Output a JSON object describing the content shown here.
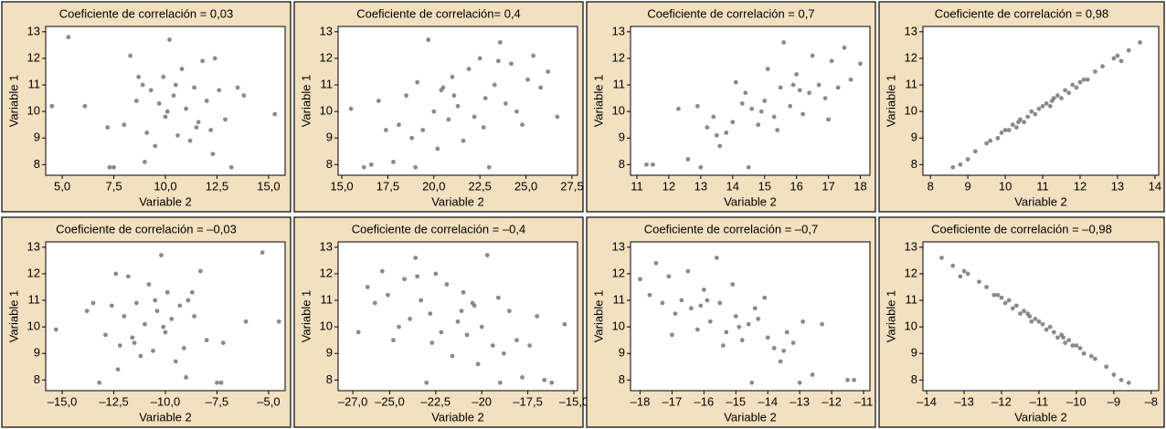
{
  "chart_data": [
    {
      "type": "scatter",
      "title": "Coeficiente de correlación = 0,03",
      "x_label": "Variable 2",
      "y_label": "Variable 1",
      "color": "#767676",
      "background": "#f3e0c0",
      "x": [
        5.3,
        6.1,
        4.5,
        7.2,
        7.5,
        8.0,
        8.3,
        8.6,
        8.9,
        9.1,
        9.3,
        9.5,
        9.7,
        9.9,
        10.0,
        10.2,
        10.4,
        10.6,
        10.8,
        11.0,
        11.2,
        11.4,
        11.6,
        11.8,
        12.0,
        12.2,
        12.4,
        12.6,
        12.9,
        13.2,
        13.5,
        13.8,
        15.3,
        9.0,
        10.5,
        11.5,
        8.7,
        12.3,
        7.3,
        10.1
      ],
      "values": [
        12.8,
        10.2,
        10.2,
        9.4,
        7.9,
        9.5,
        12.1,
        10.4,
        11.0,
        9.2,
        10.8,
        8.7,
        10.3,
        11.3,
        9.8,
        12.7,
        10.6,
        9.1,
        11.6,
        10.1,
        8.9,
        10.9,
        9.6,
        11.9,
        10.4,
        9.3,
        12.0,
        10.8,
        9.7,
        7.9,
        10.9,
        10.6,
        9.9,
        8.1,
        11.0,
        9.4,
        11.3,
        8.4,
        7.9,
        10.0
      ],
      "xlim": [
        4.2,
        15.8
      ],
      "ylim": [
        7.6,
        13.2
      ],
      "xticks": [
        {
          "value": 5,
          "label": "5,0"
        },
        {
          "value": 7.5,
          "label": "7,5"
        },
        {
          "value": 10,
          "label": "10,0"
        },
        {
          "value": 12.5,
          "label": "12,5"
        },
        {
          "value": 15,
          "label": "15,0"
        }
      ],
      "yticks": [
        8,
        9,
        10,
        11,
        12,
        13
      ]
    },
    {
      "type": "scatter",
      "title": "Coeficiente de correlación= 0,4",
      "x_label": "Variable 2",
      "y_label": "Variable 1",
      "color": "#767676",
      "background": "#f3e0c0",
      "x": [
        15.5,
        16.2,
        16.6,
        17.0,
        17.4,
        17.8,
        18.1,
        18.5,
        18.8,
        19.1,
        19.4,
        19.7,
        20.0,
        20.2,
        20.5,
        20.8,
        21.0,
        21.3,
        21.6,
        21.9,
        22.2,
        22.5,
        22.8,
        23.0,
        23.3,
        23.6,
        23.9,
        24.2,
        24.5,
        24.8,
        25.1,
        25.4,
        25.8,
        26.2,
        26.7,
        19.0,
        21.1,
        22.7,
        20.4,
        23.5
      ],
      "values": [
        10.1,
        7.9,
        8.0,
        10.4,
        9.3,
        8.1,
        9.5,
        10.6,
        9.0,
        11.1,
        9.3,
        12.7,
        10.0,
        8.6,
        10.9,
        9.7,
        11.3,
        10.2,
        8.9,
        11.6,
        9.8,
        12.0,
        10.5,
        7.9,
        11.0,
        12.6,
        10.3,
        11.8,
        10.0,
        9.5,
        11.2,
        12.1,
        10.9,
        11.5,
        9.8,
        7.9,
        10.6,
        9.4,
        10.8,
        11.9
      ],
      "xlim": [
        14.8,
        27.8
      ],
      "ylim": [
        7.6,
        13.2
      ],
      "xticks": [
        {
          "value": 15,
          "label": "15,0"
        },
        {
          "value": 17.5,
          "label": "17,5"
        },
        {
          "value": 20,
          "label": "20,0"
        },
        {
          "value": 22.5,
          "label": "22,5"
        },
        {
          "value": 25,
          "label": "25,0"
        },
        {
          "value": 27.5,
          "label": "27,5"
        }
      ],
      "yticks": [
        8,
        9,
        10,
        11,
        12,
        13
      ]
    },
    {
      "type": "scatter",
      "title": "Coeficiente de correlación = 0,7",
      "x_label": "Variable 2",
      "y_label": "Variable 1",
      "color": "#767676",
      "background": "#f3e0c0",
      "x": [
        11.3,
        11.5,
        12.3,
        12.6,
        12.9,
        13.0,
        13.2,
        13.4,
        13.6,
        13.8,
        14.0,
        14.1,
        14.3,
        14.5,
        14.6,
        14.8,
        15.0,
        15.1,
        15.3,
        15.5,
        15.6,
        15.8,
        16.0,
        16.2,
        16.4,
        16.5,
        16.7,
        16.9,
        17.1,
        17.3,
        17.5,
        17.7,
        18.0,
        14.4,
        15.4,
        16.1,
        13.5,
        17.0,
        15.9,
        14.9
      ],
      "values": [
        8.0,
        8.0,
        10.1,
        8.2,
        10.2,
        7.9,
        9.4,
        9.8,
        8.7,
        9.2,
        9.6,
        11.1,
        10.3,
        7.9,
        10.1,
        9.5,
        10.4,
        11.6,
        9.8,
        10.9,
        12.6,
        10.2,
        11.4,
        9.9,
        10.7,
        12.1,
        11.0,
        10.5,
        11.9,
        10.9,
        12.4,
        11.2,
        11.8,
        10.7,
        9.3,
        10.8,
        9.1,
        9.7,
        11.0,
        10.0
      ],
      "xlim": [
        10.8,
        18.3
      ],
      "ylim": [
        7.6,
        13.2
      ],
      "xticks": [
        11,
        12,
        13,
        14,
        15,
        16,
        17,
        18
      ],
      "yticks": [
        8,
        9,
        10,
        11,
        12,
        13
      ]
    },
    {
      "type": "scatter",
      "title": "Coeficiente de correlación = 0,98",
      "x_label": "Variable 2",
      "y_label": "Variable 1",
      "color": "#767676",
      "background": "#f3e0c0",
      "x": [
        8.6,
        8.8,
        9.0,
        9.2,
        9.5,
        9.6,
        9.8,
        9.9,
        10.0,
        10.1,
        10.2,
        10.3,
        10.4,
        10.5,
        10.6,
        10.7,
        10.8,
        10.9,
        11.0,
        11.1,
        11.2,
        11.3,
        11.4,
        11.5,
        11.6,
        11.7,
        11.8,
        11.9,
        12.0,
        12.1,
        12.2,
        12.4,
        12.6,
        12.9,
        13.0,
        13.1,
        13.3,
        13.6,
        10.35,
        11.25
      ],
      "values": [
        7.9,
        8.0,
        8.2,
        8.5,
        8.8,
        8.9,
        9.0,
        9.2,
        9.3,
        9.3,
        9.5,
        9.4,
        9.7,
        9.6,
        9.8,
        10.0,
        9.9,
        10.1,
        10.2,
        10.3,
        10.2,
        10.5,
        10.6,
        10.5,
        10.8,
        10.7,
        11.0,
        10.9,
        11.1,
        11.2,
        11.2,
        11.5,
        11.7,
        12.0,
        12.1,
        11.9,
        12.3,
        12.6,
        9.6,
        10.4
      ],
      "xlim": [
        7.8,
        14.1
      ],
      "ylim": [
        7.6,
        13.2
      ],
      "xticks": [
        8,
        9,
        10,
        11,
        12,
        13,
        14
      ],
      "yticks": [
        8,
        9,
        10,
        11,
        12,
        13
      ]
    },
    {
      "type": "scatter",
      "title": "Coeficiente de correlación = –0,03",
      "x_label": "Variable 2",
      "y_label": "Variable 1",
      "color": "#767676",
      "background": "#f3e0c0",
      "x": [
        -5.3,
        -6.1,
        -4.5,
        -7.2,
        -7.5,
        -8.0,
        -8.3,
        -8.6,
        -8.9,
        -9.1,
        -9.3,
        -9.5,
        -9.7,
        -9.9,
        -10.0,
        -10.2,
        -10.4,
        -10.6,
        -10.8,
        -11.0,
        -11.2,
        -11.4,
        -11.6,
        -11.8,
        -12.0,
        -12.2,
        -12.4,
        -12.6,
        -12.9,
        -13.2,
        -13.5,
        -13.8,
        -15.3,
        -9.0,
        -10.5,
        -11.5,
        -8.7,
        -12.3,
        -7.3,
        -10.1
      ],
      "values": [
        12.8,
        10.2,
        10.2,
        9.4,
        7.9,
        9.5,
        12.1,
        10.4,
        11.0,
        9.2,
        10.8,
        8.7,
        10.3,
        11.3,
        9.8,
        12.7,
        10.6,
        9.1,
        11.6,
        10.1,
        8.9,
        10.9,
        9.6,
        11.9,
        10.4,
        9.3,
        12.0,
        10.8,
        9.7,
        7.9,
        10.9,
        10.6,
        9.9,
        8.1,
        11.0,
        9.4,
        11.3,
        8.4,
        7.9,
        10.0
      ],
      "xlim": [
        -15.8,
        -4.2
      ],
      "ylim": [
        7.6,
        13.2
      ],
      "xticks": [
        {
          "value": -15,
          "label": "–15,0"
        },
        {
          "value": -12.5,
          "label": "–12,5"
        },
        {
          "value": -10,
          "label": "–10,0"
        },
        {
          "value": -7.5,
          "label": "–7,5"
        },
        {
          "value": -5,
          "label": "–5,0"
        }
      ],
      "yticks": [
        8,
        9,
        10,
        11,
        12,
        13
      ]
    },
    {
      "type": "scatter",
      "title": "Coeficiente de correlación = –0,4",
      "x_label": "Variable 2",
      "y_label": "Variable 1",
      "color": "#767676",
      "background": "#f3e0c0",
      "x": [
        -15.5,
        -16.2,
        -16.6,
        -17.0,
        -17.4,
        -17.8,
        -18.1,
        -18.5,
        -18.8,
        -19.1,
        -19.4,
        -19.7,
        -20.0,
        -20.2,
        -20.5,
        -20.8,
        -21.0,
        -21.3,
        -21.6,
        -21.9,
        -22.2,
        -22.5,
        -22.8,
        -23.0,
        -23.3,
        -23.6,
        -23.9,
        -24.2,
        -24.5,
        -24.8,
        -25.1,
        -25.4,
        -25.8,
        -26.2,
        -26.7,
        -19.0,
        -21.1,
        -22.7,
        -20.4,
        -23.5
      ],
      "values": [
        10.1,
        7.9,
        8.0,
        10.4,
        9.3,
        8.1,
        9.5,
        10.6,
        9.0,
        11.1,
        9.3,
        12.7,
        10.0,
        8.6,
        10.9,
        9.7,
        11.3,
        10.2,
        8.9,
        11.6,
        9.8,
        12.0,
        10.5,
        7.9,
        11.0,
        12.6,
        10.3,
        11.8,
        10.0,
        9.5,
        11.2,
        12.1,
        10.9,
        11.5,
        9.8,
        7.9,
        10.6,
        9.4,
        10.8,
        11.9
      ],
      "xlim": [
        -27.8,
        -14.8
      ],
      "ylim": [
        7.6,
        13.2
      ],
      "xticks": [
        {
          "value": -27,
          "label": "–27,0"
        },
        {
          "value": -25,
          "label": "–25,0"
        },
        {
          "value": -22.5,
          "label": "–22,5"
        },
        {
          "value": -20,
          "label": "–20"
        },
        {
          "value": -17.5,
          "label": "–17,5"
        },
        {
          "value": -15,
          "label": "–15,0"
        }
      ],
      "yticks": [
        8,
        9,
        10,
        11,
        12,
        13
      ]
    },
    {
      "type": "scatter",
      "title": "Coeficiente de correlación = –0,7",
      "x_label": "Variable 2",
      "y_label": "Variable 1",
      "color": "#767676",
      "background": "#f3e0c0",
      "x": [
        -11.3,
        -11.5,
        -12.3,
        -12.6,
        -12.9,
        -13.0,
        -13.2,
        -13.4,
        -13.6,
        -13.8,
        -14.0,
        -14.1,
        -14.3,
        -14.5,
        -14.6,
        -14.8,
        -15.0,
        -15.1,
        -15.3,
        -15.5,
        -15.6,
        -15.8,
        -16.0,
        -16.2,
        -16.4,
        -16.5,
        -16.7,
        -16.9,
        -17.1,
        -17.3,
        -17.5,
        -17.7,
        -18.0,
        -14.4,
        -15.4,
        -16.1,
        -13.5,
        -17.0,
        -15.9,
        -14.9
      ],
      "values": [
        8.0,
        8.0,
        10.1,
        8.2,
        10.2,
        7.9,
        9.4,
        9.8,
        8.7,
        9.2,
        9.6,
        11.1,
        10.3,
        7.9,
        10.1,
        9.5,
        10.4,
        11.6,
        9.8,
        10.9,
        12.6,
        10.2,
        11.4,
        9.9,
        10.7,
        12.1,
        11.0,
        10.5,
        11.9,
        10.9,
        12.4,
        11.2,
        11.8,
        10.7,
        9.3,
        10.8,
        9.1,
        9.7,
        11.0,
        10.0
      ],
      "xlim": [
        -18.3,
        -10.8
      ],
      "ylim": [
        7.6,
        13.2
      ],
      "xticks": [
        {
          "value": -18,
          "label": "–18"
        },
        {
          "value": -17,
          "label": "–17"
        },
        {
          "value": -16,
          "label": "–16"
        },
        {
          "value": -15,
          "label": "–15"
        },
        {
          "value": -14,
          "label": "–14"
        },
        {
          "value": -13,
          "label": "–13"
        },
        {
          "value": -12,
          "label": "–12"
        },
        {
          "value": -11,
          "label": "–11"
        }
      ],
      "yticks": [
        8,
        9,
        10,
        11,
        12,
        13
      ]
    },
    {
      "type": "scatter",
      "title": "Coeficiente de correlación = –0,98",
      "x_label": "Variable 2",
      "y_label": "Variable 1",
      "color": "#767676",
      "background": "#f3e0c0",
      "x": [
        -8.6,
        -8.8,
        -9.0,
        -9.2,
        -9.5,
        -9.6,
        -9.8,
        -9.9,
        -10.0,
        -10.1,
        -10.2,
        -10.3,
        -10.4,
        -10.5,
        -10.6,
        -10.7,
        -10.8,
        -10.9,
        -11.0,
        -11.1,
        -11.2,
        -11.3,
        -11.4,
        -11.5,
        -11.6,
        -11.7,
        -11.8,
        -11.9,
        -12.0,
        -12.1,
        -12.2,
        -12.4,
        -12.6,
        -12.9,
        -13.0,
        -13.1,
        -13.3,
        -13.6,
        -10.35,
        -11.25
      ],
      "values": [
        7.9,
        8.0,
        8.2,
        8.5,
        8.8,
        8.9,
        9.0,
        9.2,
        9.3,
        9.3,
        9.5,
        9.4,
        9.7,
        9.6,
        9.8,
        10.0,
        9.9,
        10.1,
        10.2,
        10.3,
        10.2,
        10.5,
        10.6,
        10.5,
        10.8,
        10.7,
        11.0,
        10.9,
        11.1,
        11.2,
        11.2,
        11.5,
        11.7,
        12.0,
        12.1,
        11.9,
        12.3,
        12.6,
        9.6,
        10.4
      ],
      "xlim": [
        -14.1,
        -7.8
      ],
      "ylim": [
        7.6,
        13.2
      ],
      "xticks": [
        {
          "value": -14,
          "label": "–14"
        },
        {
          "value": -13,
          "label": "–13"
        },
        {
          "value": -12,
          "label": "–12"
        },
        {
          "value": -11,
          "label": "–11"
        },
        {
          "value": -10,
          "label": "–10"
        },
        {
          "value": -9,
          "label": "–9"
        },
        {
          "value": -8,
          "label": "–8"
        }
      ],
      "yticks": [
        8,
        9,
        10,
        11,
        12,
        13
      ]
    }
  ]
}
